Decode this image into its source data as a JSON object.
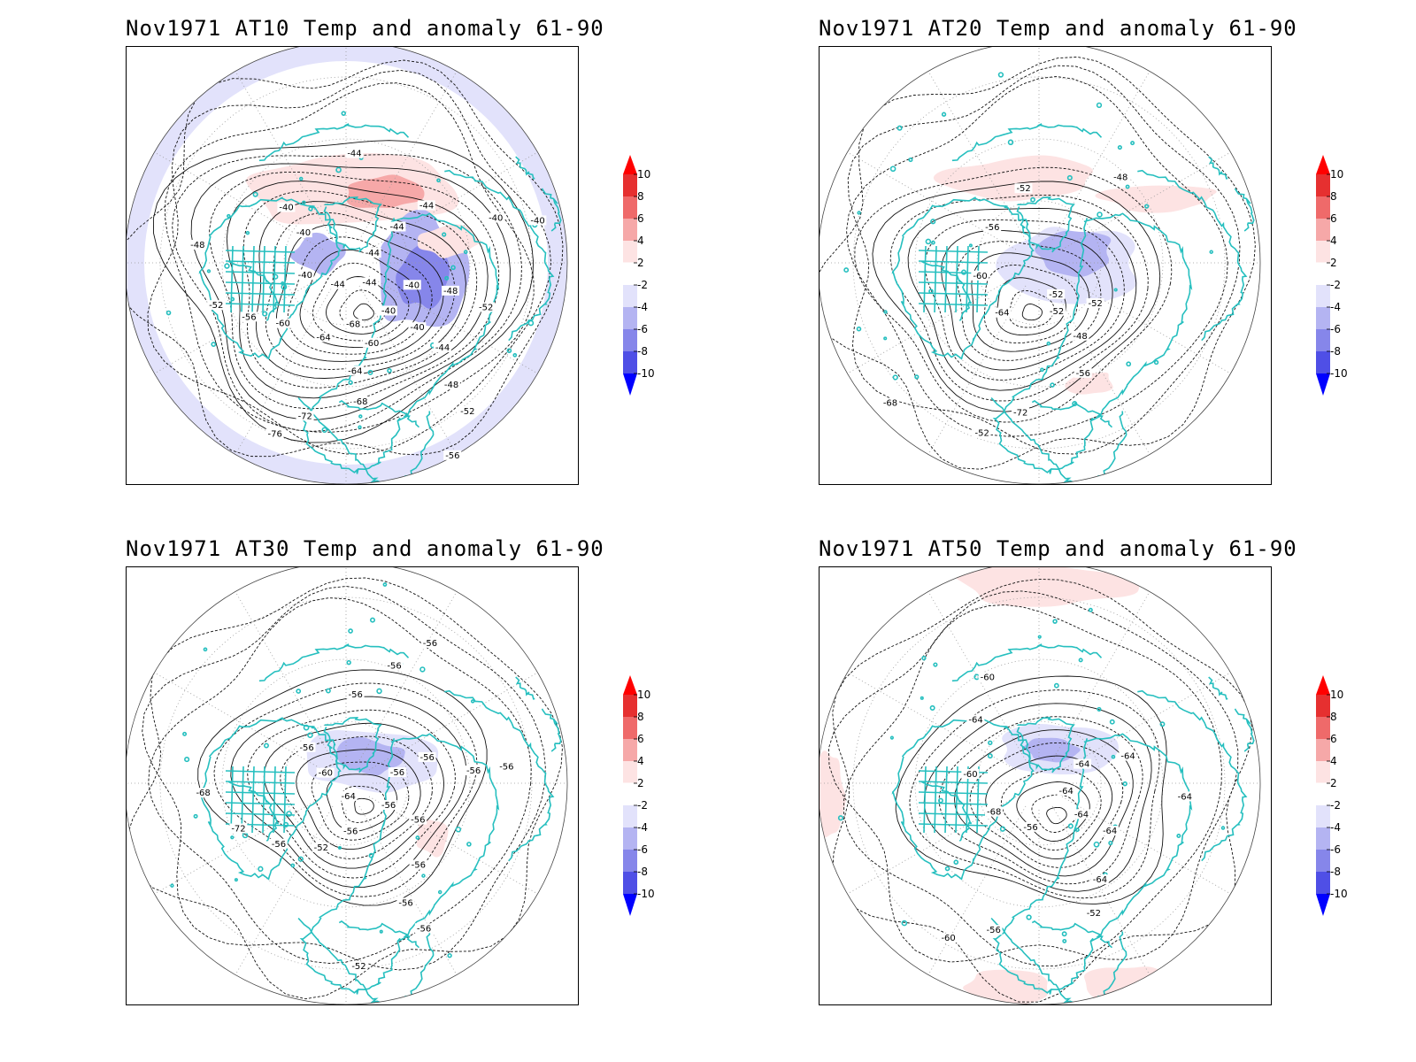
{
  "colors": {
    "coast": "#26bfbf",
    "contour": "#111111",
    "grid": "#9a9a9a",
    "warm": [
      "#fde3e3",
      "#f6a8a8",
      "#ef6a6a",
      "#e63030",
      "#ff0000"
    ],
    "cold": [
      "#e2e2fb",
      "#b4b4f2",
      "#8686ea",
      "#4f4fe6",
      "#0000ff"
    ]
  },
  "colorbar": {
    "labels": [
      "10",
      "8",
      "6",
      "4",
      "2",
      "-2",
      "-4",
      "-6",
      "-8",
      "-10"
    ]
  },
  "panels": [
    {
      "id": "at10",
      "title": "Nov1971 AT10 Temp and anomaly 61-90",
      "contour_labels": [
        "-40",
        "-40",
        "-44",
        "-48",
        "-52",
        "-56",
        "-60",
        "-64",
        "-68",
        "-72",
        "-76",
        "-68",
        "-64",
        "-60",
        "-56",
        "-52",
        "-48",
        "-44",
        "-40",
        "-40",
        "-40",
        "-44",
        "-44",
        "-44",
        "-44",
        "-44",
        "-40",
        "-40",
        "-40",
        "-48",
        "-52"
      ],
      "anomaly": "mixed"
    },
    {
      "id": "at20",
      "title": "Nov1971 AT20 Temp and anomaly 61-90",
      "contour_labels": [
        "-52",
        "-48",
        "-56",
        "-72",
        "-52",
        "-68",
        "-64",
        "-60",
        "-56",
        "-52",
        "-48",
        "-52",
        "-52"
      ],
      "anomaly": "mixed"
    },
    {
      "id": "at30",
      "title": "Nov1971 AT30 Temp and anomaly 61-90",
      "contour_labels": [
        "-56",
        "-56",
        "-56",
        "-56",
        "-56",
        "-52",
        "-56",
        "-52",
        "-56",
        "-72",
        "-68",
        "-64",
        "-60",
        "-56",
        "-56",
        "-56",
        "-56",
        "-56",
        "-56",
        "-56",
        "-56"
      ],
      "anomaly": "mixed"
    },
    {
      "id": "at50",
      "title": "Nov1971 AT50 Temp and anomaly 61-90",
      "contour_labels": [
        "-64",
        "-64",
        "-64",
        "-52",
        "-56",
        "-60",
        "-56",
        "-68",
        "-60",
        "-64",
        "-60",
        "-64",
        "-64",
        "-64",
        "-64"
      ],
      "anomaly": "mixed"
    }
  ]
}
